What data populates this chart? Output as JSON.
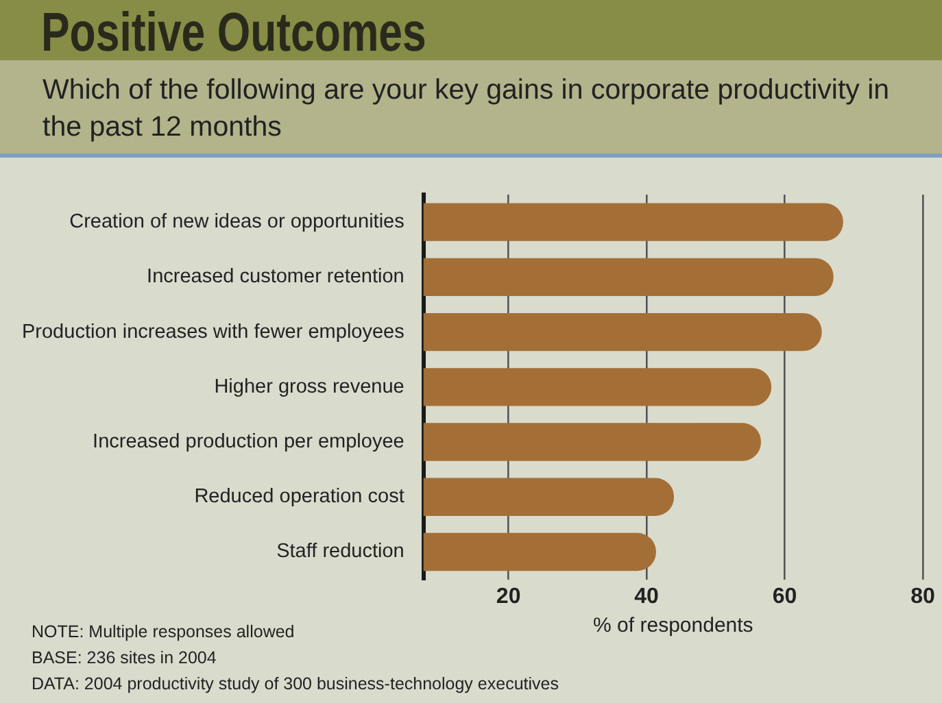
{
  "chart_data": {
    "type": "bar",
    "orientation": "horizontal",
    "title": "Positive Outcomes",
    "subtitle": "Which of the following are your key gains in corporate productivity in the past 12 months",
    "categories": [
      "Creation of new ideas or opportunities",
      "Increased customer retention",
      "Production increases with fewer employees",
      "Higher gross revenue",
      "Increased production per employee",
      "Reduced operation cost",
      "Staff reduction"
    ],
    "values": [
      68.4,
      67.0,
      65.3,
      58.0,
      56.5,
      43.9,
      41.3
    ],
    "color": "#a36f36",
    "xlim": [
      7.7,
      80
    ],
    "xticks": [
      20,
      40,
      60,
      80
    ],
    "xlabel": "% of respondents",
    "grid": "x",
    "legend": false,
    "annotations": [
      "NOTE: Multiple responses allowed",
      "BASE: 236 sites in 2004",
      "DATA: 2004 productivity study of 300 business-technology executives"
    ]
  }
}
